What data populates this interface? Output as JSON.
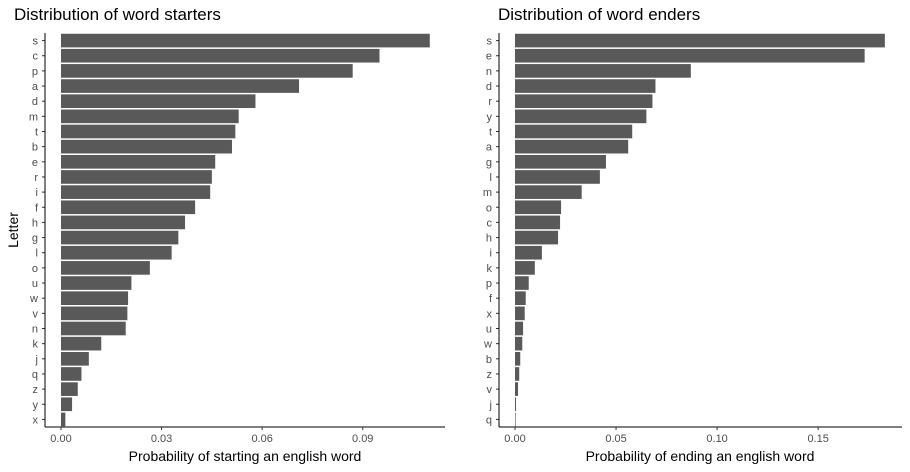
{
  "colors": {
    "bar": "#595959",
    "background": "#ffffff",
    "axis": "#000000",
    "tick_text": "#4d4d4d"
  },
  "chart_data": [
    {
      "type": "bar",
      "orientation": "horizontal",
      "title": "Distribution of word starters",
      "xlabel": "Probability of starting an english word",
      "ylabel": "Letter",
      "xlim": [
        0,
        0.112
      ],
      "xticks": [
        0.0,
        0.03,
        0.06,
        0.09
      ],
      "xtick_labels": [
        "0.00",
        "0.03",
        "0.06",
        "0.09"
      ],
      "grid": false,
      "categories": [
        "s",
        "c",
        "p",
        "a",
        "d",
        "m",
        "t",
        "b",
        "e",
        "r",
        "i",
        "f",
        "h",
        "g",
        "l",
        "o",
        "u",
        "w",
        "v",
        "n",
        "k",
        "j",
        "q",
        "z",
        "y",
        "x"
      ],
      "values": [
        0.11,
        0.095,
        0.087,
        0.071,
        0.058,
        0.053,
        0.052,
        0.051,
        0.046,
        0.045,
        0.0445,
        0.04,
        0.037,
        0.035,
        0.033,
        0.0265,
        0.021,
        0.02,
        0.0198,
        0.0193,
        0.012,
        0.0083,
        0.0061,
        0.005,
        0.0033,
        0.0013
      ]
    },
    {
      "type": "bar",
      "orientation": "horizontal",
      "title": "Distribution of word enders",
      "xlabel": "Probability of ending an english word",
      "ylabel": "",
      "xlim": [
        0,
        0.19
      ],
      "xticks": [
        0.0,
        0.05,
        0.1,
        0.15
      ],
      "xtick_labels": [
        "0.00",
        "0.05",
        "0.10",
        "0.15"
      ],
      "grid": false,
      "categories": [
        "s",
        "e",
        "n",
        "d",
        "r",
        "y",
        "t",
        "a",
        "g",
        "l",
        "m",
        "o",
        "c",
        "h",
        "i",
        "k",
        "p",
        "f",
        "x",
        "u",
        "w",
        "b",
        "z",
        "v",
        "j",
        "q"
      ],
      "values": [
        0.183,
        0.173,
        0.087,
        0.0695,
        0.068,
        0.065,
        0.058,
        0.056,
        0.045,
        0.042,
        0.033,
        0.0228,
        0.0223,
        0.0213,
        0.0133,
        0.0098,
        0.0068,
        0.0053,
        0.0048,
        0.004,
        0.0036,
        0.0026,
        0.0021,
        0.0015,
        0.0005,
        0.0003
      ]
    }
  ]
}
